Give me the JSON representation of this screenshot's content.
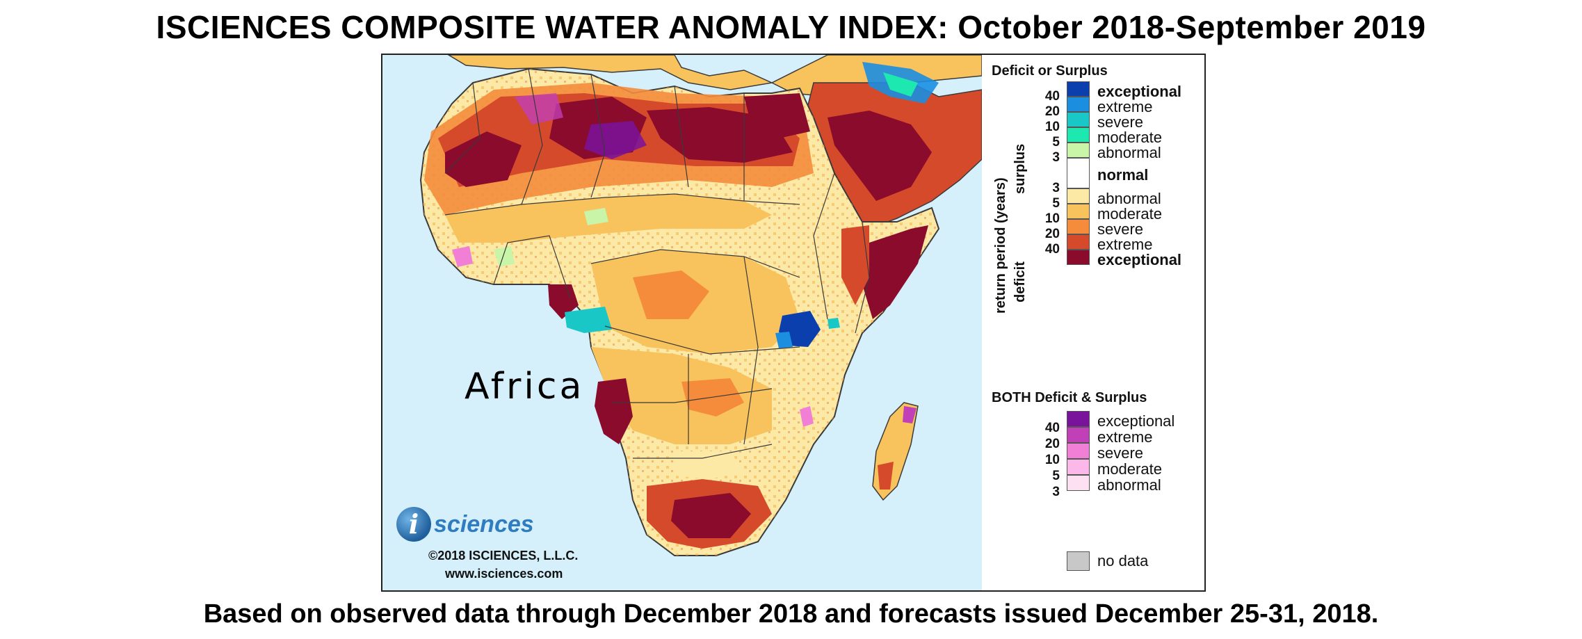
{
  "title": "ISCIENCES COMPOSITE WATER ANOMALY INDEX: October 2018-September 2019",
  "subtitle": "Based on observed data through December 2018 and forecasts issued December 25-31, 2018.",
  "map": {
    "region_label": "Africa",
    "colors": {
      "ocean": "#d6f0fb",
      "land_normal": "#fde9a8",
      "border": "#3a3a3a"
    }
  },
  "logo": {
    "mark": "i",
    "wordmark": "sciences",
    "copyright": "©2018 ISCIENCES, L.L.C.",
    "website": "www.isciences.com"
  },
  "legend": {
    "deficit_surplus_heading": "Deficit or Surplus",
    "axis_label": "return period (years)",
    "surplus_label": "surplus",
    "deficit_label": "deficit",
    "surplus_classes": [
      {
        "label": "exceptional",
        "color": "#0b3fae",
        "bold": true
      },
      {
        "label": "extreme",
        "color": "#1b8ee0",
        "bold": false
      },
      {
        "label": "severe",
        "color": "#19c7c7",
        "bold": false
      },
      {
        "label": "moderate",
        "color": "#1de8b0",
        "bold": false
      },
      {
        "label": "abnormal",
        "color": "#c9f5a9",
        "bold": false
      }
    ],
    "normal_class": {
      "label": "normal",
      "color": "#ffffff",
      "bold": true
    },
    "deficit_classes": [
      {
        "label": "abnormal",
        "color": "#fde9a6",
        "bold": false
      },
      {
        "label": "moderate",
        "color": "#f8c25c",
        "bold": false
      },
      {
        "label": "severe",
        "color": "#f48c3c",
        "bold": false
      },
      {
        "label": "extreme",
        "color": "#d64a2c",
        "bold": false
      },
      {
        "label": "exceptional",
        "color": "#8a0b2c",
        "bold": true
      }
    ],
    "surplus_ticks": [
      "40",
      "20",
      "10",
      "5",
      "3"
    ],
    "deficit_ticks": [
      "3",
      "5",
      "10",
      "20",
      "40"
    ],
    "both_heading": "BOTH Deficit & Surplus",
    "both_classes": [
      {
        "label": "exceptional",
        "color": "#7a139c"
      },
      {
        "label": "extreme",
        "color": "#c13fb7"
      },
      {
        "label": "severe",
        "color": "#f27fd6"
      },
      {
        "label": "moderate",
        "color": "#fbb8e8"
      },
      {
        "label": "abnormal",
        "color": "#fde1f2"
      }
    ],
    "both_ticks": [
      "40",
      "20",
      "10",
      "5",
      "3"
    ],
    "no_data": {
      "label": "no data",
      "color": "#c8c8c8"
    }
  }
}
